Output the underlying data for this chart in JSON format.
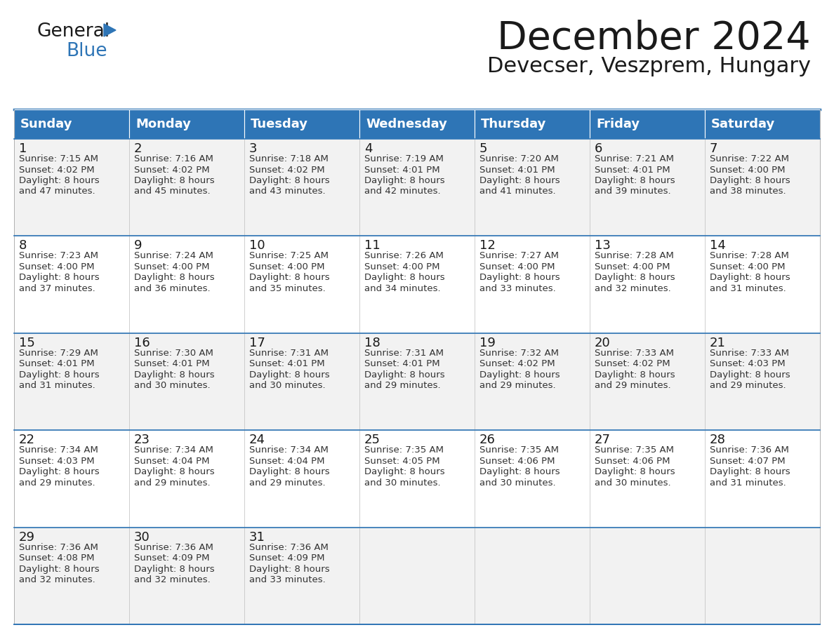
{
  "title": "December 2024",
  "subtitle": "Devecser, Veszprem, Hungary",
  "header_color": "#2E75B6",
  "header_text_color": "#FFFFFF",
  "cell_bg_even": "#F2F2F2",
  "cell_bg_odd": "#FFFFFF",
  "days_of_week": [
    "Sunday",
    "Monday",
    "Tuesday",
    "Wednesday",
    "Thursday",
    "Friday",
    "Saturday"
  ],
  "calendar_data": [
    [
      {
        "day": 1,
        "sunrise": "7:15 AM",
        "sunset": "4:02 PM",
        "daylight": "8 hours",
        "daylight2": "and 47 minutes."
      },
      {
        "day": 2,
        "sunrise": "7:16 AM",
        "sunset": "4:02 PM",
        "daylight": "8 hours",
        "daylight2": "and 45 minutes."
      },
      {
        "day": 3,
        "sunrise": "7:18 AM",
        "sunset": "4:02 PM",
        "daylight": "8 hours",
        "daylight2": "and 43 minutes."
      },
      {
        "day": 4,
        "sunrise": "7:19 AM",
        "sunset": "4:01 PM",
        "daylight": "8 hours",
        "daylight2": "and 42 minutes."
      },
      {
        "day": 5,
        "sunrise": "7:20 AM",
        "sunset": "4:01 PM",
        "daylight": "8 hours",
        "daylight2": "and 41 minutes."
      },
      {
        "day": 6,
        "sunrise": "7:21 AM",
        "sunset": "4:01 PM",
        "daylight": "8 hours",
        "daylight2": "and 39 minutes."
      },
      {
        "day": 7,
        "sunrise": "7:22 AM",
        "sunset": "4:00 PM",
        "daylight": "8 hours",
        "daylight2": "and 38 minutes."
      }
    ],
    [
      {
        "day": 8,
        "sunrise": "7:23 AM",
        "sunset": "4:00 PM",
        "daylight": "8 hours",
        "daylight2": "and 37 minutes."
      },
      {
        "day": 9,
        "sunrise": "7:24 AM",
        "sunset": "4:00 PM",
        "daylight": "8 hours",
        "daylight2": "and 36 minutes."
      },
      {
        "day": 10,
        "sunrise": "7:25 AM",
        "sunset": "4:00 PM",
        "daylight": "8 hours",
        "daylight2": "and 35 minutes."
      },
      {
        "day": 11,
        "sunrise": "7:26 AM",
        "sunset": "4:00 PM",
        "daylight": "8 hours",
        "daylight2": "and 34 minutes."
      },
      {
        "day": 12,
        "sunrise": "7:27 AM",
        "sunset": "4:00 PM",
        "daylight": "8 hours",
        "daylight2": "and 33 minutes."
      },
      {
        "day": 13,
        "sunrise": "7:28 AM",
        "sunset": "4:00 PM",
        "daylight": "8 hours",
        "daylight2": "and 32 minutes."
      },
      {
        "day": 14,
        "sunrise": "7:28 AM",
        "sunset": "4:00 PM",
        "daylight": "8 hours",
        "daylight2": "and 31 minutes."
      }
    ],
    [
      {
        "day": 15,
        "sunrise": "7:29 AM",
        "sunset": "4:01 PM",
        "daylight": "8 hours",
        "daylight2": "and 31 minutes."
      },
      {
        "day": 16,
        "sunrise": "7:30 AM",
        "sunset": "4:01 PM",
        "daylight": "8 hours",
        "daylight2": "and 30 minutes."
      },
      {
        "day": 17,
        "sunrise": "7:31 AM",
        "sunset": "4:01 PM",
        "daylight": "8 hours",
        "daylight2": "and 30 minutes."
      },
      {
        "day": 18,
        "sunrise": "7:31 AM",
        "sunset": "4:01 PM",
        "daylight": "8 hours",
        "daylight2": "and 29 minutes."
      },
      {
        "day": 19,
        "sunrise": "7:32 AM",
        "sunset": "4:02 PM",
        "daylight": "8 hours",
        "daylight2": "and 29 minutes."
      },
      {
        "day": 20,
        "sunrise": "7:33 AM",
        "sunset": "4:02 PM",
        "daylight": "8 hours",
        "daylight2": "and 29 minutes."
      },
      {
        "day": 21,
        "sunrise": "7:33 AM",
        "sunset": "4:03 PM",
        "daylight": "8 hours",
        "daylight2": "and 29 minutes."
      }
    ],
    [
      {
        "day": 22,
        "sunrise": "7:34 AM",
        "sunset": "4:03 PM",
        "daylight": "8 hours",
        "daylight2": "and 29 minutes."
      },
      {
        "day": 23,
        "sunrise": "7:34 AM",
        "sunset": "4:04 PM",
        "daylight": "8 hours",
        "daylight2": "and 29 minutes."
      },
      {
        "day": 24,
        "sunrise": "7:34 AM",
        "sunset": "4:04 PM",
        "daylight": "8 hours",
        "daylight2": "and 29 minutes."
      },
      {
        "day": 25,
        "sunrise": "7:35 AM",
        "sunset": "4:05 PM",
        "daylight": "8 hours",
        "daylight2": "and 30 minutes."
      },
      {
        "day": 26,
        "sunrise": "7:35 AM",
        "sunset": "4:06 PM",
        "daylight": "8 hours",
        "daylight2": "and 30 minutes."
      },
      {
        "day": 27,
        "sunrise": "7:35 AM",
        "sunset": "4:06 PM",
        "daylight": "8 hours",
        "daylight2": "and 30 minutes."
      },
      {
        "day": 28,
        "sunrise": "7:36 AM",
        "sunset": "4:07 PM",
        "daylight": "8 hours",
        "daylight2": "and 31 minutes."
      }
    ],
    [
      {
        "day": 29,
        "sunrise": "7:36 AM",
        "sunset": "4:08 PM",
        "daylight": "8 hours",
        "daylight2": "and 32 minutes."
      },
      {
        "day": 30,
        "sunrise": "7:36 AM",
        "sunset": "4:09 PM",
        "daylight": "8 hours",
        "daylight2": "and 32 minutes."
      },
      {
        "day": 31,
        "sunrise": "7:36 AM",
        "sunset": "4:09 PM",
        "daylight": "8 hours",
        "daylight2": "and 33 minutes."
      },
      null,
      null,
      null,
      null
    ]
  ],
  "logo_color1": "#1a1a1a",
  "logo_color2": "#2E75B6",
  "logo_triangle_color": "#2E75B6",
  "title_fontsize": 40,
  "subtitle_fontsize": 22,
  "header_fontsize": 13,
  "day_num_fontsize": 13,
  "cell_text_fontsize": 9.5
}
